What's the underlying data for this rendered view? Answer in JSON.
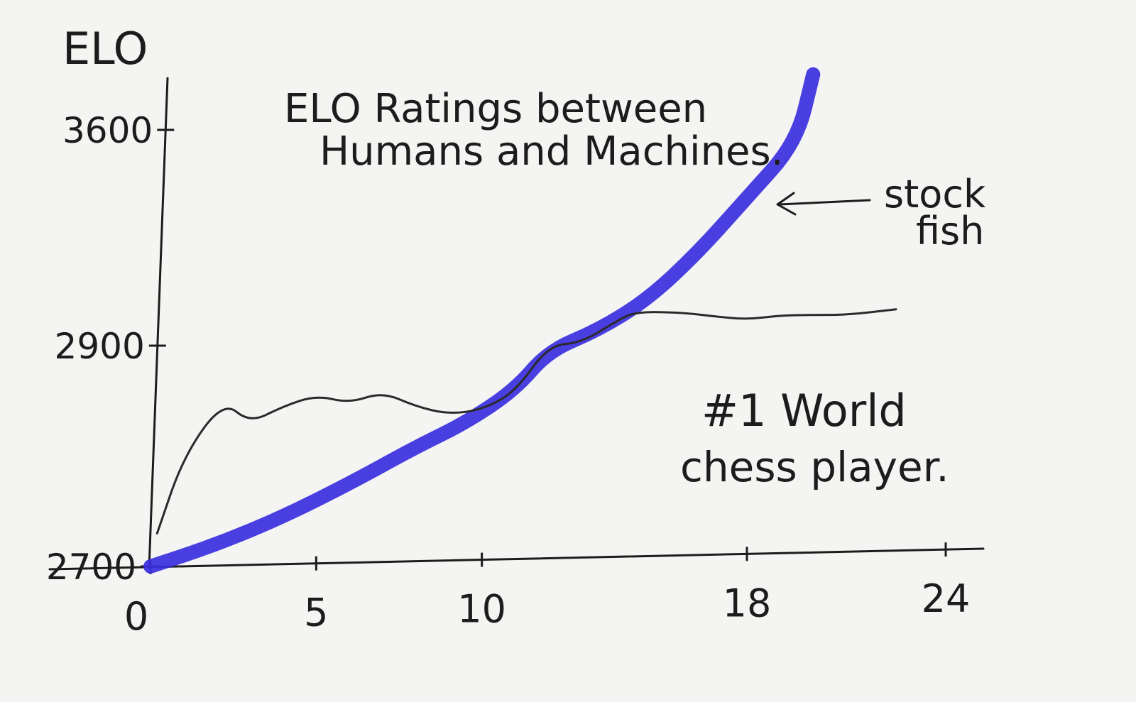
{
  "chart_data": {
    "type": "line",
    "title_lines": [
      "ELO Ratings between",
      "Humans and Machines."
    ],
    "ylabel": "ELO",
    "xlabel": "",
    "y_tick_labels": [
      "2700",
      "2900",
      "3600"
    ],
    "y_tick_values": [
      2700,
      2900,
      3600
    ],
    "y_scale_note": "uneven hand-drawn axis",
    "x_tick_labels": [
      "0",
      "5",
      "10",
      "18",
      "24"
    ],
    "x_tick_values": [
      0,
      5,
      10,
      18,
      24
    ],
    "xlim": [
      0,
      24
    ],
    "series": [
      {
        "name": "stock fish",
        "label_lines": [
          "stock",
          "fish"
        ],
        "color": "#3a2fe0",
        "x": [
          0,
          2,
          4,
          6,
          8,
          9.5,
          11,
          12,
          13.5,
          15,
          16.5,
          18,
          19.5,
          20
        ],
        "y": [
          2700,
          2720,
          2745,
          2775,
          2808,
          2830,
          2860,
          2895,
          2950,
          3050,
          3200,
          3380,
          3560,
          3780
        ]
      },
      {
        "name": "#1 World chess player.",
        "label_lines": [
          "#1 World",
          "chess player."
        ],
        "color": "#2a2a2a",
        "x": [
          0.2,
          1,
          2.2,
          3,
          4,
          5,
          6,
          7,
          8,
          9,
          10,
          11,
          12,
          13,
          14,
          14.6,
          16,
          17,
          18,
          19,
          20,
          21,
          22.5
        ],
        "y": [
          2730,
          2800,
          2850,
          2830,
          2845,
          2855,
          2848,
          2858,
          2845,
          2838,
          2842,
          2858,
          2900,
          2910,
          2975,
          3010,
          3008,
          2995,
          2985,
          2998,
          3000,
          3000,
          3018
        ]
      }
    ]
  }
}
